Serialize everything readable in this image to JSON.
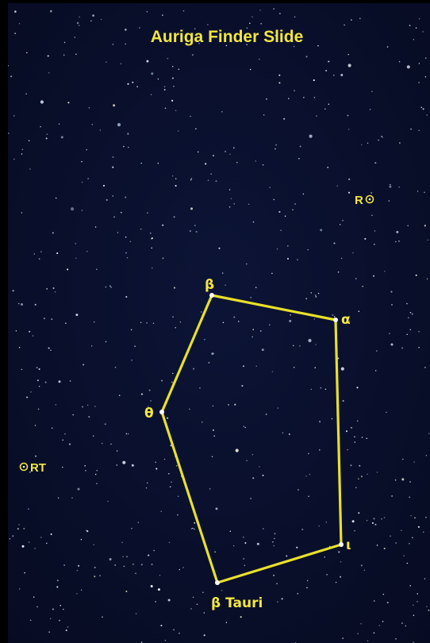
{
  "slide": {
    "title": "Auriga Finder Slide",
    "background_color": "#0a0f2a",
    "line_color": "#e8e02a",
    "label_color": "#f2e640",
    "star_color": "#e9f3ff",
    "variable_stars": [
      {
        "label": "R"
      },
      {
        "label": "RT"
      }
    ],
    "asterism_stars": [
      {
        "label": "β"
      },
      {
        "label": "α"
      },
      {
        "label": "θ"
      },
      {
        "label": "ι"
      },
      {
        "label": "β Tauri"
      }
    ]
  }
}
